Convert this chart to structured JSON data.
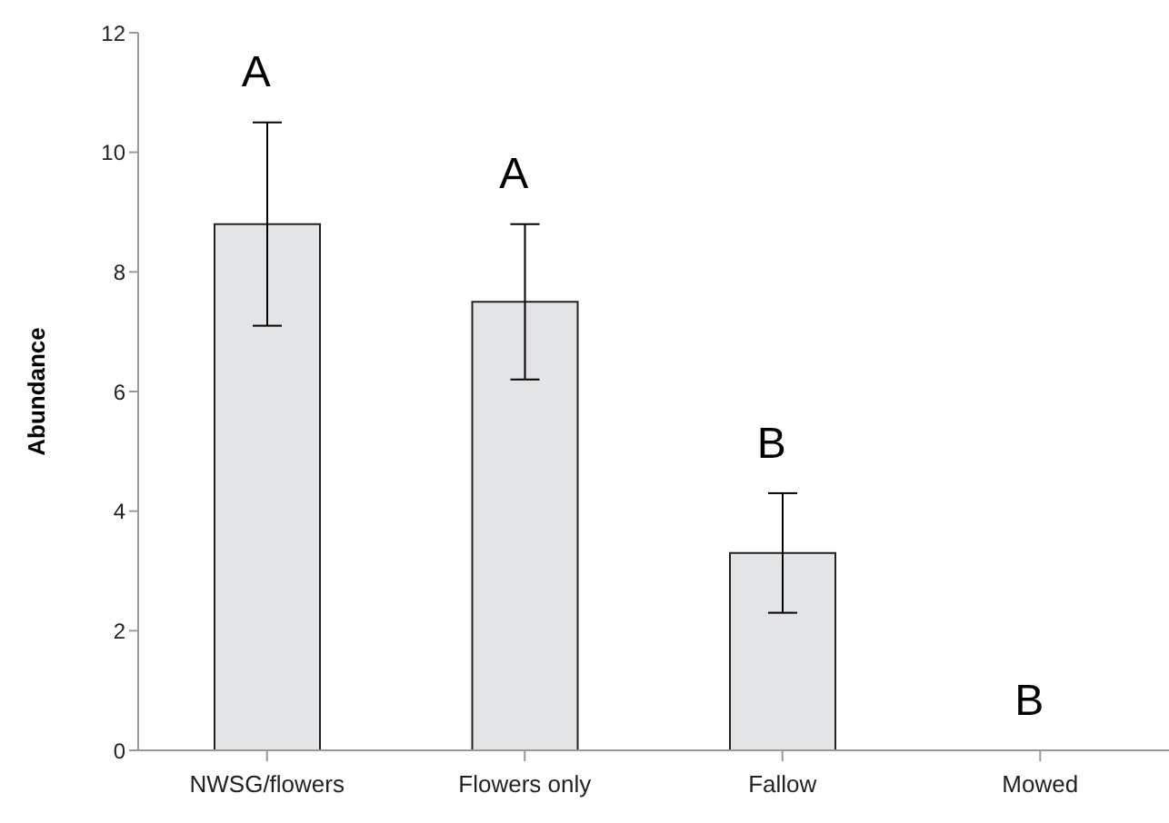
{
  "chart_data": {
    "type": "bar",
    "ylabel": "Abundance",
    "categories": [
      "NWSG/flowers",
      "Flowers only",
      "Fallow",
      "Mowed"
    ],
    "values": [
      8.8,
      7.5,
      3.3,
      0
    ],
    "errors": [
      1.7,
      1.3,
      1.0,
      null
    ],
    "color": "#e3e4e6",
    "ylim": [
      0,
      12
    ],
    "yticks": [
      0,
      2,
      4,
      6,
      8,
      10,
      12
    ],
    "grid": false,
    "annotations": [
      "A",
      "A",
      "B",
      "B"
    ]
  }
}
